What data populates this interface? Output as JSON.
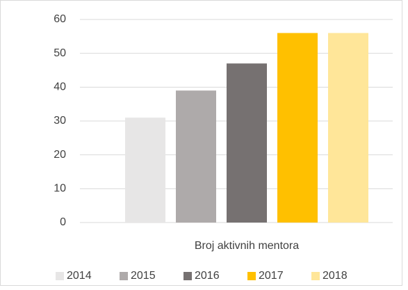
{
  "chart_data": {
    "type": "bar",
    "categories": [
      "Broj aktivnih mentora"
    ],
    "series": [
      {
        "name": "2014",
        "color": "#e7e6e6",
        "values": [
          31
        ]
      },
      {
        "name": "2015",
        "color": "#aeaaaa",
        "values": [
          39
        ]
      },
      {
        "name": "2016",
        "color": "#767171",
        "values": [
          47
        ]
      },
      {
        "name": "2017",
        "color": "#ffc000",
        "values": [
          56
        ]
      },
      {
        "name": "2018",
        "color": "#ffe699",
        "values": [
          56
        ]
      }
    ],
    "ylim": [
      0,
      60
    ],
    "yticks": [
      0,
      10,
      20,
      30,
      40,
      50,
      60
    ],
    "grid": true,
    "legend": "bottom"
  }
}
